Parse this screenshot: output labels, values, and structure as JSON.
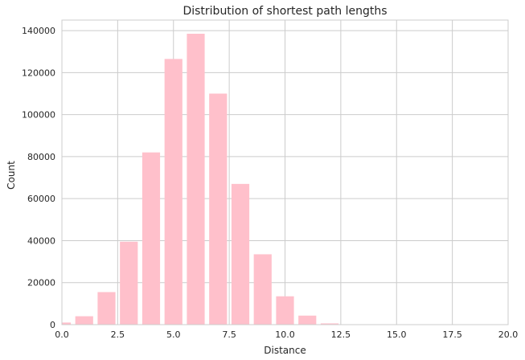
{
  "chart_data": {
    "type": "bar",
    "title": "Distribution of shortest path lengths",
    "xlabel": "Distance",
    "ylabel": "Count",
    "xlim": [
      0,
      20
    ],
    "ylim": [
      0,
      145000
    ],
    "grid": true,
    "bar_color": "#ffc0cb",
    "grid_color": "#cccccc",
    "x_ticks": [
      0,
      2.5,
      5,
      7.5,
      10,
      12.5,
      15,
      17.5,
      20
    ],
    "x_tick_labels": [
      "0.0",
      "2.5",
      "5.0",
      "7.5",
      "10.0",
      "12.5",
      "15.0",
      "17.5",
      "20.0"
    ],
    "y_ticks": [
      0,
      20000,
      40000,
      60000,
      80000,
      100000,
      120000,
      140000
    ],
    "y_tick_labels": [
      "0",
      "20000",
      "40000",
      "60000",
      "80000",
      "100000",
      "120000",
      "140000"
    ],
    "bar_width": 0.8,
    "x": [
      0,
      1,
      2,
      3,
      4,
      5,
      6,
      7,
      8,
      9,
      10,
      11,
      12
    ],
    "values": [
      1000,
      4000,
      15500,
      39500,
      82000,
      126500,
      138500,
      110000,
      67000,
      33500,
      13500,
      4300,
      600
    ]
  }
}
